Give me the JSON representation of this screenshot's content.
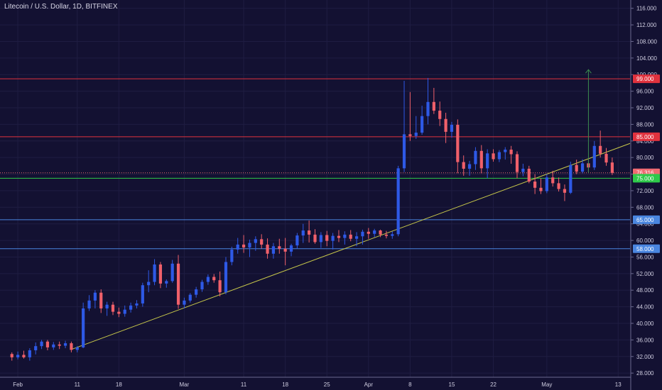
{
  "title": "Litecoin / U.S. Dollar, 1D, BITFINEX",
  "colors": {
    "background": "#131132",
    "grid": "#1f1d42",
    "up": "#2e59e6",
    "down": "#f0606a",
    "axis_text": "#cfcde0",
    "trendline": "#c8c84a",
    "arrow": "#3c8c4e"
  },
  "chart_data": {
    "type": "candlestick",
    "ylim": [
      27,
      118
    ],
    "y_ticks": [
      "116.000",
      "112.000",
      "108.000",
      "104.000",
      "100.000",
      "96.000",
      "92.000",
      "88.000",
      "84.000",
      "80.000",
      "76.000",
      "72.000",
      "68.000",
      "64.000",
      "60.000",
      "56.000",
      "52.000",
      "48.000",
      "44.000",
      "40.000",
      "36.000",
      "32.000",
      "28.000"
    ],
    "x_labels": [
      {
        "label": "Feb",
        "day": 1
      },
      {
        "label": "11",
        "day": 11
      },
      {
        "label": "18",
        "day": 18
      },
      {
        "label": "Mar",
        "day": 29
      },
      {
        "label": "11",
        "day": 39
      },
      {
        "label": "18",
        "day": 46
      },
      {
        "label": "25",
        "day": 53
      },
      {
        "label": "Apr",
        "day": 60
      },
      {
        "label": "8",
        "day": 67
      },
      {
        "label": "15",
        "day": 74
      },
      {
        "label": "22",
        "day": 81
      },
      {
        "label": "May",
        "day": 90
      },
      {
        "label": "13",
        "day": 102
      }
    ],
    "x_range": [
      -2,
      104
    ],
    "candles": [
      [
        32.6,
        33.0,
        31.0,
        31.8
      ],
      [
        31.8,
        33.2,
        31.3,
        32.4
      ],
      [
        32.4,
        33.4,
        31.5,
        31.8
      ],
      [
        31.8,
        34.0,
        31.0,
        33.5
      ],
      [
        33.5,
        35.4,
        32.5,
        34.5
      ],
      [
        34.5,
        36.0,
        33.8,
        35.6
      ],
      [
        35.6,
        36.0,
        33.5,
        34.2
      ],
      [
        34.2,
        35.5,
        33.6,
        34.9
      ],
      [
        34.9,
        35.6,
        33.8,
        34.6
      ],
      [
        34.6,
        35.8,
        34.0,
        35.2
      ],
      [
        35.2,
        35.6,
        33.0,
        33.6
      ],
      [
        33.6,
        34.5,
        33.0,
        34.2
      ],
      [
        34.2,
        45.0,
        34.0,
        43.6
      ],
      [
        43.6,
        46.8,
        43.0,
        45.5
      ],
      [
        45.5,
        48.0,
        43.6,
        47.4
      ],
      [
        47.4,
        48.2,
        42.5,
        43.6
      ],
      [
        43.6,
        45.2,
        41.8,
        44.5
      ],
      [
        44.5,
        45.2,
        42.0,
        42.8
      ],
      [
        42.8,
        43.8,
        41.5,
        42.3
      ],
      [
        42.3,
        44.3,
        41.6,
        43.3
      ],
      [
        43.3,
        45.0,
        42.6,
        44.3
      ],
      [
        44.3,
        45.6,
        43.6,
        44.8
      ],
      [
        44.8,
        49.8,
        44.0,
        49.2
      ],
      [
        49.2,
        52.8,
        47.5,
        50.0
      ],
      [
        50.0,
        55.5,
        49.2,
        54.2
      ],
      [
        54.2,
        54.8,
        48.5,
        49.6
      ],
      [
        49.6,
        50.6,
        48.6,
        50.2
      ],
      [
        50.2,
        55.3,
        49.8,
        54.4
      ],
      [
        54.4,
        56.5,
        43.5,
        44.5
      ],
      [
        44.5,
        46.2,
        43.6,
        45.5
      ],
      [
        45.5,
        47.3,
        45.0,
        46.9
      ],
      [
        46.9,
        48.8,
        46.2,
        48.2
      ],
      [
        48.2,
        50.5,
        47.6,
        50.0
      ],
      [
        50.0,
        51.8,
        49.3,
        51.2
      ],
      [
        51.2,
        51.9,
        49.8,
        50.4
      ],
      [
        50.4,
        52.5,
        46.5,
        47.5
      ],
      [
        47.5,
        56.0,
        47.0,
        54.8
      ],
      [
        54.8,
        58.5,
        54.0,
        57.8
      ],
      [
        57.8,
        60.6,
        56.8,
        59.0
      ],
      [
        59.0,
        61.3,
        57.0,
        58.3
      ],
      [
        58.3,
        60.2,
        56.0,
        59.4
      ],
      [
        59.4,
        61.0,
        57.5,
        60.3
      ],
      [
        60.3,
        61.5,
        58.0,
        59.0
      ],
      [
        59.0,
        60.5,
        55.6,
        56.8
      ],
      [
        56.8,
        59.4,
        55.6,
        58.6
      ],
      [
        58.6,
        60.4,
        56.8,
        58.0
      ],
      [
        58.0,
        60.6,
        54.0,
        57.3
      ],
      [
        57.3,
        59.2,
        56.2,
        58.8
      ],
      [
        58.8,
        61.8,
        58.0,
        61.2
      ],
      [
        61.2,
        64.0,
        59.4,
        62.4
      ],
      [
        62.4,
        64.8,
        59.5,
        61.4
      ],
      [
        61.4,
        62.7,
        59.2,
        59.6
      ],
      [
        59.6,
        62.0,
        58.2,
        61.3
      ],
      [
        61.3,
        62.3,
        58.6,
        59.9
      ],
      [
        59.9,
        61.8,
        57.8,
        61.1
      ],
      [
        61.1,
        62.5,
        59.6,
        60.6
      ],
      [
        60.6,
        62.2,
        59.0,
        61.4
      ],
      [
        61.4,
        62.5,
        59.8,
        60.4
      ],
      [
        60.4,
        62.0,
        58.6,
        61.0
      ],
      [
        61.0,
        62.6,
        59.0,
        62.1
      ],
      [
        62.1,
        63.0,
        60.4,
        61.6
      ],
      [
        61.6,
        62.8,
        60.8,
        62.4
      ],
      [
        62.4,
        62.6,
        60.8,
        61.4
      ],
      [
        61.4,
        62.3,
        60.5,
        61.1
      ],
      [
        61.1,
        62.2,
        60.4,
        61.5
      ],
      [
        61.5,
        78.0,
        61.0,
        77.4
      ],
      [
        77.4,
        98.5,
        76.5,
        85.6
      ],
      [
        85.6,
        95.8,
        84.0,
        85.2
      ],
      [
        85.2,
        90.0,
        84.5,
        86.0
      ],
      [
        86.0,
        92.5,
        85.5,
        90.0
      ],
      [
        90.0,
        99.2,
        88.0,
        93.4
      ],
      [
        93.4,
        96.8,
        90.5,
        91.3
      ],
      [
        91.3,
        93.5,
        87.6,
        89.3
      ],
      [
        89.3,
        90.8,
        83.5,
        86.2
      ],
      [
        86.2,
        88.6,
        84.8,
        87.9
      ],
      [
        87.9,
        89.2,
        76.2,
        78.9
      ],
      [
        78.9,
        80.5,
        75.6,
        77.3
      ],
      [
        77.3,
        79.2,
        75.6,
        78.4
      ],
      [
        78.4,
        82.5,
        77.0,
        81.6
      ],
      [
        81.6,
        83.0,
        76.2,
        77.4
      ],
      [
        77.4,
        82.0,
        75.0,
        81.0
      ],
      [
        81.0,
        82.0,
        79.0,
        79.6
      ],
      [
        79.6,
        81.8,
        78.9,
        81.3
      ],
      [
        81.3,
        82.5,
        79.5,
        81.9
      ],
      [
        81.9,
        82.8,
        78.5,
        80.8
      ],
      [
        80.8,
        81.5,
        75.0,
        76.5
      ],
      [
        76.5,
        78.5,
        75.5,
        77.3
      ],
      [
        77.3,
        78.0,
        73.8,
        74.2
      ],
      [
        74.2,
        76.0,
        71.2,
        72.7
      ],
      [
        72.7,
        75.0,
        71.2,
        71.9
      ],
      [
        71.9,
        76.0,
        71.4,
        75.2
      ],
      [
        75.2,
        76.8,
        73.0,
        73.8
      ],
      [
        73.8,
        75.2,
        71.8,
        72.4
      ],
      [
        72.4,
        73.5,
        69.5,
        71.5
      ],
      [
        71.5,
        79.0,
        71.2,
        78.2
      ],
      [
        78.2,
        79.5,
        76.0,
        76.6
      ],
      [
        76.6,
        79.6,
        76.2,
        78.6
      ],
      [
        78.6,
        79.8,
        76.5,
        77.6
      ],
      [
        77.6,
        84.0,
        77.0,
        82.8
      ],
      [
        82.8,
        86.5,
        80.0,
        80.9
      ],
      [
        80.9,
        82.3,
        78.0,
        78.8
      ],
      [
        78.8,
        80.0,
        75.8,
        76.3
      ]
    ],
    "hlines": [
      {
        "value": 99.0,
        "label": "99.000",
        "color": "#e0323e"
      },
      {
        "value": 85.0,
        "label": "85.000",
        "color": "#e0323e"
      },
      {
        "value": 76.316,
        "label": "76.316",
        "color": "#ef6a72",
        "dotted": true
      },
      {
        "value": 75.0,
        "label": "75.000",
        "color": "#2ec94a"
      },
      {
        "value": 65.0,
        "label": "65.000",
        "color": "#4a86e0"
      },
      {
        "value": 58.0,
        "label": "58.000",
        "color": "#4a86e0"
      }
    ],
    "trendline": {
      "x1": 10,
      "y1": 33.7,
      "x2": 104,
      "y2": 83.4
    },
    "arrow": {
      "day": 97,
      "from": 76.3,
      "to": 101.2
    }
  }
}
